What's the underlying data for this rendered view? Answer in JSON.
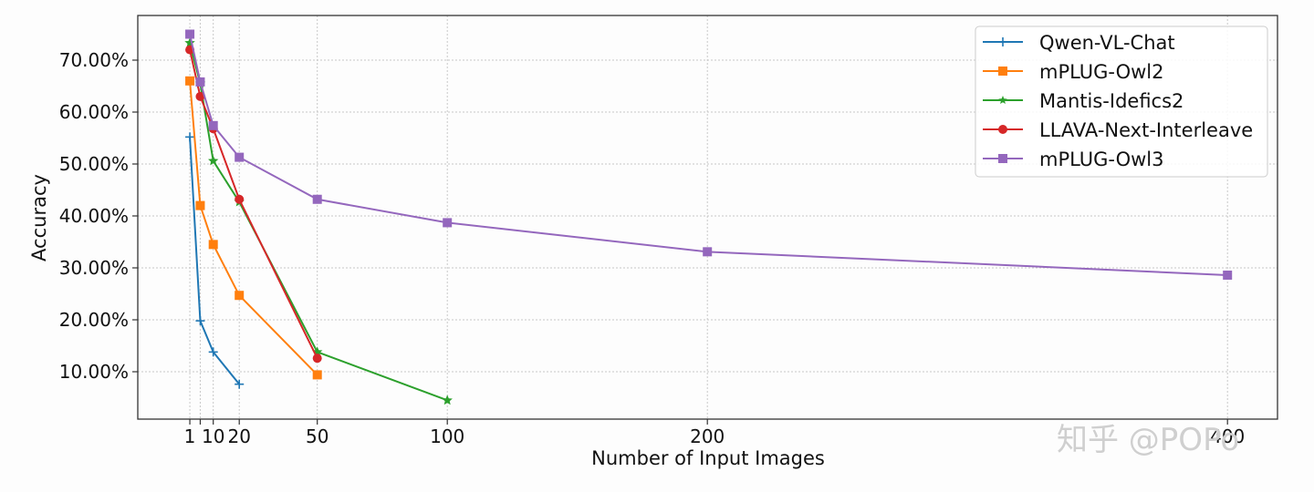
{
  "chart_data": {
    "type": "line",
    "title": "",
    "xlabel": "Number of Input Images",
    "ylabel": "Accuracy",
    "x_ticks": [
      1,
      5,
      10,
      20,
      50,
      100,
      200,
      400
    ],
    "x_tick_labels": [
      "1",
      "",
      "10",
      "20",
      "50",
      "100",
      "200",
      "400"
    ],
    "y_ticks": [
      10,
      20,
      30,
      40,
      50,
      60,
      70
    ],
    "y_tick_labels": [
      "10.00%",
      "20.00%",
      "30.00%",
      "40.00%",
      "50.00%",
      "60.00%",
      "70.00%"
    ],
    "xlim": [
      -15,
      420
    ],
    "ylim": [
      1,
      79
    ],
    "grid": true,
    "legend_position": "upper right",
    "series": [
      {
        "name": "Qwen-VL-Chat",
        "color": "#1f77b4",
        "marker": "plus",
        "x": [
          1,
          5,
          10,
          20
        ],
        "values": [
          55.2,
          19.8,
          13.8,
          7.6
        ]
      },
      {
        "name": "mPLUG-Owl2",
        "color": "#ff7f0e",
        "marker": "square",
        "x": [
          1,
          5,
          10,
          20,
          50
        ],
        "values": [
          66.0,
          42.0,
          34.5,
          24.7,
          9.4
        ]
      },
      {
        "name": "Mantis-Idefics2",
        "color": "#2ca02c",
        "marker": "star",
        "x": [
          1,
          5,
          10,
          20,
          50,
          100
        ],
        "values": [
          73.3,
          65.5,
          50.6,
          42.7,
          13.8,
          4.5
        ]
      },
      {
        "name": "LLAVA-Next-Interleave",
        "color": "#d62728",
        "marker": "circle",
        "x": [
          1,
          5,
          10,
          20,
          50
        ],
        "values": [
          72.0,
          63.0,
          56.8,
          43.2,
          12.6
        ]
      },
      {
        "name": "mPLUG-Owl3",
        "color": "#9467bd",
        "marker": "square",
        "x": [
          1,
          5,
          10,
          20,
          50,
          100,
          200,
          400
        ],
        "values": [
          75.0,
          65.8,
          57.4,
          51.3,
          43.2,
          38.7,
          33.1,
          28.6
        ]
      }
    ]
  },
  "watermark": "知乎 @POPo"
}
